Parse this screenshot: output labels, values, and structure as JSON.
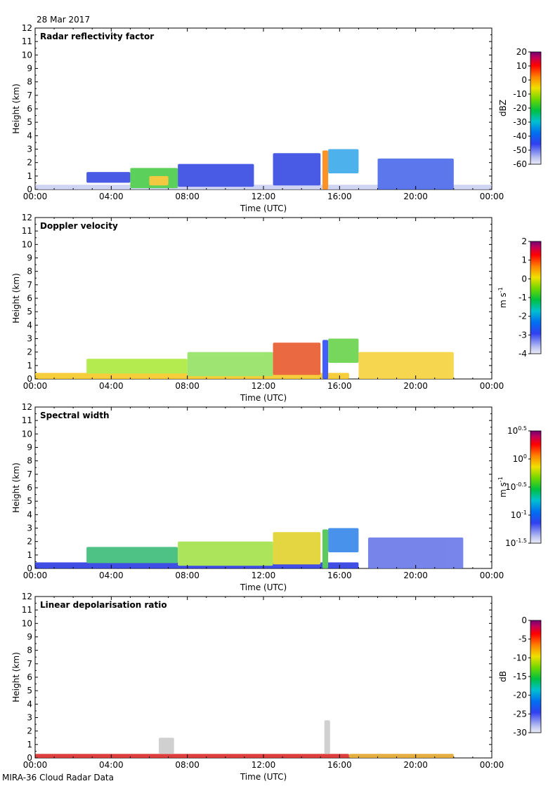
{
  "page": {
    "date_label": "28 Mar 2017",
    "footer_label": "MIRA-36 Cloud Radar Data"
  },
  "chart_data": [
    {
      "type": "heatmap",
      "title": "Radar reflectivity factor",
      "xlabel": "Time (UTC)",
      "ylabel": "Height (km)",
      "x_ticks": [
        "00:00",
        "04:00",
        "08:00",
        "12:00",
        "16:00",
        "20:00",
        "00:00"
      ],
      "xlim_hours": [
        0,
        24
      ],
      "y_ticks": [
        0,
        1,
        2,
        3,
        4,
        5,
        6,
        7,
        8,
        9,
        10,
        11,
        12
      ],
      "ylim_km": [
        0,
        12
      ],
      "colorbar": {
        "unit": "dBZ",
        "range": [
          -60,
          20
        ],
        "ticks": [
          "20",
          "10",
          "0",
          "-10",
          "-20",
          "-30",
          "-40",
          "-50",
          "-60"
        ]
      },
      "features": [
        {
          "desc": "surface clutter layer",
          "start_h": 0.0,
          "end_h": 24.0,
          "base_km": 0.0,
          "top_km": 0.35,
          "color": "#c8cdf2"
        },
        {
          "desc": "low cloud layer",
          "start_h": 2.7,
          "end_h": 5.0,
          "base_km": 0.5,
          "top_km": 1.3,
          "color": "#2a3fe0"
        },
        {
          "desc": "cloud core",
          "start_h": 5.0,
          "end_h": 7.5,
          "base_km": 0.1,
          "top_km": 1.6,
          "color": "#3fc83f"
        },
        {
          "desc": "core maximum",
          "start_h": 6.0,
          "end_h": 7.0,
          "base_km": 0.3,
          "top_km": 1.0,
          "color": "#f0c020"
        },
        {
          "desc": "scattered cells",
          "start_h": 7.5,
          "end_h": 11.5,
          "base_km": 0.2,
          "top_km": 1.9,
          "color": "#2a3fe0"
        },
        {
          "desc": "convective cells",
          "start_h": 12.5,
          "end_h": 15.0,
          "base_km": 0.3,
          "top_km": 2.7,
          "color": "#2a3fe0"
        },
        {
          "desc": "rain shaft",
          "start_h": 15.1,
          "end_h": 15.4,
          "base_km": 0.0,
          "top_km": 2.9,
          "color": "#ff8000"
        },
        {
          "desc": "upper cloud",
          "start_h": 15.4,
          "end_h": 17.0,
          "base_km": 1.2,
          "top_km": 3.0,
          "color": "#2fa5e8"
        },
        {
          "desc": "isolated echoes",
          "start_h": 18.0,
          "end_h": 22.0,
          "base_km": 0.0,
          "top_km": 2.3,
          "color": "#4060e8"
        }
      ]
    },
    {
      "type": "heatmap",
      "title": "Doppler velocity",
      "xlabel": "Time (UTC)",
      "ylabel": "Height (km)",
      "x_ticks": [
        "00:00",
        "04:00",
        "08:00",
        "12:00",
        "16:00",
        "20:00",
        "00:00"
      ],
      "xlim_hours": [
        0,
        24
      ],
      "y_ticks": [
        0,
        1,
        2,
        3,
        4,
        5,
        6,
        7,
        8,
        9,
        10,
        11,
        12
      ],
      "ylim_km": [
        0,
        12
      ],
      "colorbar": {
        "unit": "m s",
        "unit_sup": "-1",
        "range": [
          -4,
          2
        ],
        "ticks": [
          "2",
          "1",
          "0",
          "-1",
          "-2",
          "-3",
          "-4"
        ]
      },
      "features": [
        {
          "desc": "near-surface layer",
          "start_h": 0.0,
          "end_h": 16.5,
          "base_km": 0.0,
          "top_km": 0.45,
          "color": "#f5c518"
        },
        {
          "desc": "low cloud layer",
          "start_h": 2.7,
          "end_h": 8.0,
          "base_km": 0.4,
          "top_km": 1.5,
          "color": "#a8e830"
        },
        {
          "desc": "scattered cells",
          "start_h": 8.0,
          "end_h": 12.5,
          "base_km": 0.2,
          "top_km": 2.0,
          "color": "#8ee05a"
        },
        {
          "desc": "convective cells",
          "start_h": 12.5,
          "end_h": 15.0,
          "base_km": 0.3,
          "top_km": 2.7,
          "color": "#e85020"
        },
        {
          "desc": "falling precipitation",
          "start_h": 15.1,
          "end_h": 15.4,
          "base_km": 0.0,
          "top_km": 2.9,
          "color": "#2040ff"
        },
        {
          "desc": "upper cloud",
          "start_h": 15.4,
          "end_h": 17.0,
          "base_km": 1.2,
          "top_km": 3.0,
          "color": "#60d040"
        },
        {
          "desc": "scattered echoes",
          "start_h": 17.0,
          "end_h": 22.0,
          "base_km": 0.0,
          "top_km": 2.0,
          "color": "#f5d030"
        }
      ]
    },
    {
      "type": "heatmap",
      "title": "Spectral width",
      "xlabel": "Time (UTC)",
      "ylabel": "Height (km)",
      "x_ticks": [
        "00:00",
        "04:00",
        "08:00",
        "12:00",
        "16:00",
        "20:00",
        "00:00"
      ],
      "xlim_hours": [
        0,
        24
      ],
      "y_ticks": [
        0,
        1,
        2,
        3,
        4,
        5,
        6,
        7,
        8,
        9,
        10,
        11,
        12
      ],
      "ylim_km": [
        0,
        12
      ],
      "colorbar": {
        "unit": "m s",
        "unit_sup": "-1",
        "range": [
          -1.5,
          0.5
        ],
        "log_ticks": [
          {
            "base": "10",
            "exp": "0.5"
          },
          {
            "base": "10",
            "exp": "0"
          },
          {
            "base": "10",
            "exp": "-0.5"
          },
          {
            "base": "10",
            "exp": "-1"
          },
          {
            "base": "10",
            "exp": "-1.5"
          }
        ]
      },
      "features": [
        {
          "desc": "near-surface layer",
          "start_h": 0.0,
          "end_h": 17.0,
          "base_km": 0.0,
          "top_km": 0.45,
          "color": "#2030e0"
        },
        {
          "desc": "low cloud layer",
          "start_h": 2.7,
          "end_h": 7.5,
          "base_km": 0.4,
          "top_km": 1.6,
          "color": "#30b870"
        },
        {
          "desc": "scattered cells",
          "start_h": 7.5,
          "end_h": 12.5,
          "base_km": 0.2,
          "top_km": 2.0,
          "color": "#9ee040"
        },
        {
          "desc": "convective cells",
          "start_h": 12.5,
          "end_h": 15.0,
          "base_km": 0.3,
          "top_km": 2.7,
          "color": "#e0d020"
        },
        {
          "desc": "rain shaft",
          "start_h": 15.1,
          "end_h": 15.4,
          "base_km": 0.0,
          "top_km": 2.9,
          "color": "#40c040"
        },
        {
          "desc": "upper cloud",
          "start_h": 15.4,
          "end_h": 17.0,
          "base_km": 1.2,
          "top_km": 3.0,
          "color": "#2a7fe8"
        },
        {
          "desc": "isolated echoes",
          "start_h": 17.5,
          "end_h": 22.5,
          "base_km": 0.0,
          "top_km": 2.3,
          "color": "#6070e8"
        }
      ]
    },
    {
      "type": "heatmap",
      "title": "Linear depolarisation ratio",
      "xlabel": "Time (UTC)",
      "ylabel": "Height (km)",
      "x_ticks": [
        "00:00",
        "04:00",
        "08:00",
        "12:00",
        "16:00",
        "20:00",
        "00:00"
      ],
      "xlim_hours": [
        0,
        24
      ],
      "y_ticks": [
        0,
        1,
        2,
        3,
        4,
        5,
        6,
        7,
        8,
        9,
        10,
        11,
        12
      ],
      "ylim_km": [
        0,
        12
      ],
      "colorbar": {
        "unit": "dB",
        "range": [
          -30,
          0
        ],
        "ticks": [
          "0",
          "-5",
          "-10",
          "-15",
          "-20",
          "-25",
          "-30"
        ]
      },
      "features": [
        {
          "desc": "near-surface layer",
          "start_h": 0.0,
          "end_h": 16.5,
          "base_km": 0.0,
          "top_km": 0.3,
          "color": "#d81e1e"
        },
        {
          "desc": "grey patch",
          "start_h": 6.5,
          "end_h": 7.3,
          "base_km": 0.3,
          "top_km": 1.5,
          "color": "#c8c8c8"
        },
        {
          "desc": "grey column",
          "start_h": 15.2,
          "end_h": 15.5,
          "base_km": 0.3,
          "top_km": 2.8,
          "color": "#c8c8c8"
        },
        {
          "desc": "sparse echoes",
          "start_h": 16.5,
          "end_h": 22.0,
          "base_km": 0.0,
          "top_km": 0.3,
          "color": "#e0a020"
        }
      ]
    }
  ]
}
